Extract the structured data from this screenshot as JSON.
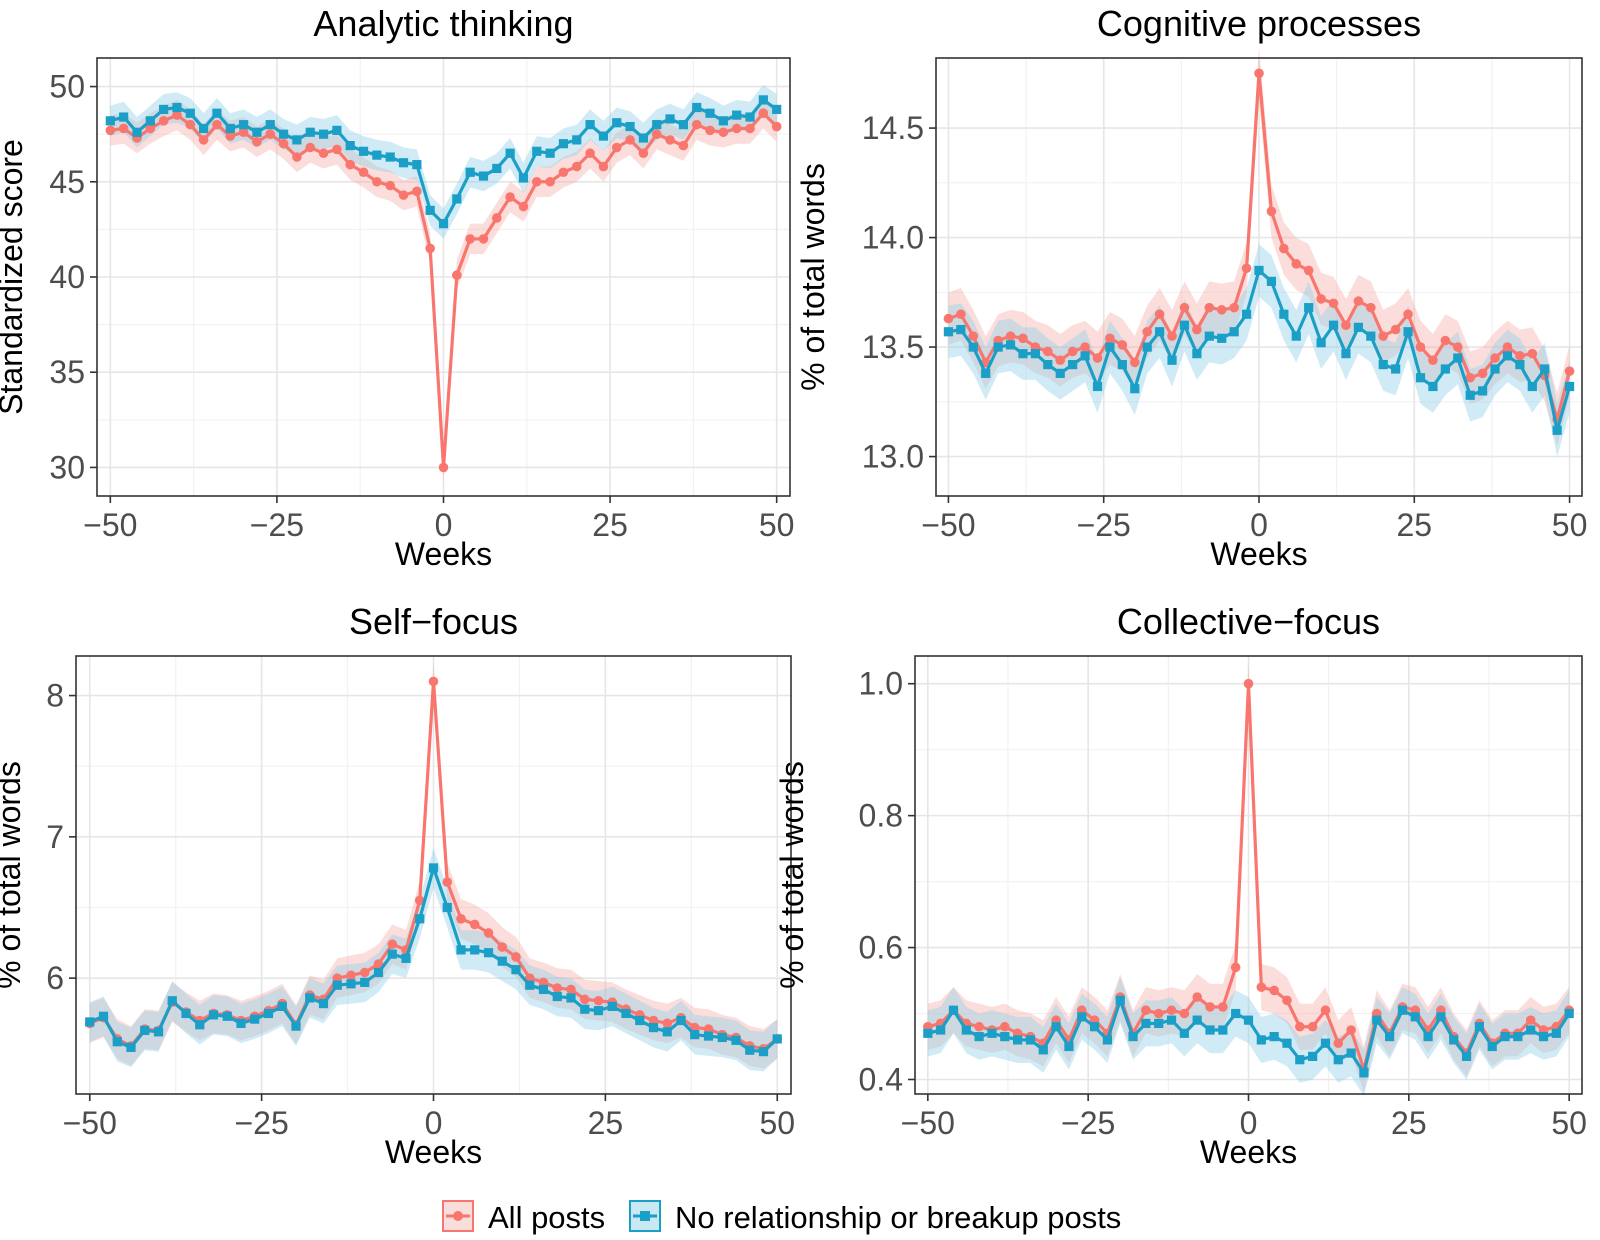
{
  "legend": {
    "position": "bottom",
    "items": [
      {
        "label": "All posts",
        "color": "#F8766D",
        "marker": "circle"
      },
      {
        "label": "No relationship or breakup posts",
        "color": "#1B9FC7",
        "marker": "square"
      }
    ]
  },
  "chart_data": [
    {
      "type": "line",
      "title": "Analytic thinking",
      "xlabel": "Weeks",
      "ylabel": "Standardized score",
      "xlim": [
        -52,
        52
      ],
      "ylim": [
        28.5,
        51.5
      ],
      "xticks": [
        -50,
        -25,
        0,
        25,
        50
      ],
      "xtick_labels": [
        "−50",
        "−25",
        "0",
        "25",
        "50"
      ],
      "yticks": [
        30,
        35,
        40,
        45,
        50
      ],
      "ytick_labels": [
        "30",
        "35",
        "40",
        "45",
        "50"
      ],
      "grid": true,
      "band": 0.8,
      "x": [
        -50,
        -48,
        -46,
        -44,
        -42,
        -40,
        -38,
        -36,
        -34,
        -32,
        -30,
        -28,
        -26,
        -24,
        -22,
        -20,
        -18,
        -16,
        -14,
        -12,
        -10,
        -8,
        -6,
        -4,
        -2,
        0,
        2,
        4,
        6,
        8,
        10,
        12,
        14,
        16,
        18,
        20,
        22,
        24,
        26,
        28,
        30,
        32,
        34,
        36,
        38,
        40,
        42,
        44,
        46,
        48,
        50
      ],
      "series": [
        {
          "name": "All posts",
          "color": "#F8766D",
          "marker": "circle",
          "values": [
            47.7,
            47.8,
            47.3,
            47.8,
            48.2,
            48.5,
            48.0,
            47.2,
            48.0,
            47.4,
            47.6,
            47.1,
            47.5,
            47.0,
            46.3,
            46.8,
            46.5,
            46.7,
            45.9,
            45.5,
            45.0,
            44.8,
            44.3,
            44.5,
            41.5,
            30.0,
            40.1,
            42.0,
            42.0,
            43.1,
            44.2,
            43.7,
            45.0,
            45.0,
            45.5,
            45.8,
            46.5,
            45.8,
            46.8,
            47.2,
            46.5,
            47.5,
            47.2,
            46.9,
            48.0,
            47.7,
            47.6,
            47.8,
            47.8,
            48.6,
            47.9
          ]
        },
        {
          "name": "No relationship or breakup posts",
          "color": "#1B9FC7",
          "marker": "square",
          "values": [
            48.2,
            48.4,
            47.6,
            48.2,
            48.8,
            48.9,
            48.6,
            47.8,
            48.6,
            47.8,
            48.0,
            47.6,
            48.0,
            47.5,
            47.2,
            47.6,
            47.5,
            47.7,
            46.9,
            46.6,
            46.4,
            46.3,
            46.0,
            45.9,
            43.5,
            42.8,
            44.1,
            45.5,
            45.3,
            45.7,
            46.5,
            45.2,
            46.6,
            46.5,
            47.0,
            47.2,
            48.0,
            47.4,
            48.1,
            47.9,
            47.3,
            48.0,
            48.3,
            48.0,
            48.9,
            48.6,
            48.2,
            48.5,
            48.4,
            49.3,
            48.8
          ]
        }
      ]
    },
    {
      "type": "line",
      "title": "Cognitive processes",
      "xlabel": "Weeks",
      "ylabel": "% of total words",
      "xlim": [
        -52,
        52
      ],
      "ylim": [
        12.82,
        14.82
      ],
      "xticks": [
        -50,
        -25,
        0,
        25,
        50
      ],
      "xtick_labels": [
        "−50",
        "−25",
        "0",
        "25",
        "50"
      ],
      "yticks": [
        13.0,
        13.5,
        14.0,
        14.5
      ],
      "ytick_labels": [
        "13.0",
        "13.5",
        "14.0",
        "14.5"
      ],
      "grid": true,
      "band": 0.12,
      "x": [
        -50,
        -48,
        -46,
        -44,
        -42,
        -40,
        -38,
        -36,
        -34,
        -32,
        -30,
        -28,
        -26,
        -24,
        -22,
        -20,
        -18,
        -16,
        -14,
        -12,
        -10,
        -8,
        -6,
        -4,
        -2,
        0,
        2,
        4,
        6,
        8,
        10,
        12,
        14,
        16,
        18,
        20,
        22,
        24,
        26,
        28,
        30,
        32,
        34,
        36,
        38,
        40,
        42,
        44,
        46,
        48,
        50
      ],
      "series": [
        {
          "name": "All posts",
          "color": "#F8766D",
          "marker": "circle",
          "values": [
            13.63,
            13.65,
            13.55,
            13.43,
            13.53,
            13.55,
            13.54,
            13.5,
            13.48,
            13.44,
            13.48,
            13.5,
            13.45,
            13.54,
            13.51,
            13.43,
            13.57,
            13.65,
            13.55,
            13.68,
            13.58,
            13.68,
            13.67,
            13.68,
            13.86,
            14.75,
            14.12,
            13.95,
            13.88,
            13.85,
            13.72,
            13.7,
            13.6,
            13.71,
            13.68,
            13.55,
            13.58,
            13.65,
            13.5,
            13.44,
            13.53,
            13.5,
            13.36,
            13.38,
            13.45,
            13.5,
            13.46,
            13.47,
            13.37,
            13.17,
            13.39
          ]
        },
        {
          "name": "No relationship or breakup posts",
          "color": "#1B9FC7",
          "marker": "square",
          "values": [
            13.57,
            13.58,
            13.5,
            13.38,
            13.5,
            13.51,
            13.47,
            13.47,
            13.42,
            13.38,
            13.42,
            13.46,
            13.32,
            13.5,
            13.42,
            13.31,
            13.5,
            13.57,
            13.44,
            13.6,
            13.47,
            13.55,
            13.54,
            13.57,
            13.65,
            13.85,
            13.8,
            13.65,
            13.55,
            13.68,
            13.52,
            13.6,
            13.47,
            13.59,
            13.55,
            13.42,
            13.4,
            13.57,
            13.36,
            13.32,
            13.4,
            13.45,
            13.28,
            13.3,
            13.4,
            13.46,
            13.42,
            13.32,
            13.4,
            13.12,
            13.32
          ]
        }
      ]
    },
    {
      "type": "line",
      "title": "Self−focus",
      "xlabel": "Weeks",
      "ylabel": "% of total words",
      "xlim": [
        -52,
        52
      ],
      "ylim": [
        5.18,
        8.28
      ],
      "xticks": [
        -50,
        -25,
        0,
        25,
        50
      ],
      "xtick_labels": [
        "−50",
        "−25",
        "0",
        "25",
        "50"
      ],
      "yticks": [
        6,
        7,
        8
      ],
      "ytick_labels": [
        "6",
        "7",
        "8"
      ],
      "grid": true,
      "band": 0.14,
      "x": [
        -50,
        -48,
        -46,
        -44,
        -42,
        -40,
        -38,
        -36,
        -34,
        -32,
        -30,
        -28,
        -26,
        -24,
        -22,
        -20,
        -18,
        -16,
        -14,
        -12,
        -10,
        -8,
        -6,
        -4,
        -2,
        0,
        2,
        4,
        6,
        8,
        10,
        12,
        14,
        16,
        18,
        20,
        22,
        24,
        26,
        28,
        30,
        32,
        34,
        36,
        38,
        40,
        42,
        44,
        46,
        48,
        50
      ],
      "series": [
        {
          "name": "All posts",
          "color": "#F8766D",
          "marker": "circle",
          "values": [
            5.68,
            5.72,
            5.57,
            5.52,
            5.64,
            5.63,
            5.83,
            5.76,
            5.7,
            5.75,
            5.74,
            5.7,
            5.73,
            5.77,
            5.82,
            5.67,
            5.88,
            5.85,
            6.0,
            6.02,
            6.04,
            6.1,
            6.24,
            6.2,
            6.55,
            8.1,
            6.68,
            6.42,
            6.38,
            6.32,
            6.22,
            6.15,
            6.0,
            5.97,
            5.93,
            5.92,
            5.85,
            5.84,
            5.83,
            5.78,
            5.74,
            5.7,
            5.68,
            5.72,
            5.65,
            5.64,
            5.6,
            5.58,
            5.52,
            5.5,
            5.57
          ]
        },
        {
          "name": "No relationship or breakup posts",
          "color": "#1B9FC7",
          "marker": "square",
          "values": [
            5.69,
            5.73,
            5.55,
            5.51,
            5.63,
            5.62,
            5.84,
            5.75,
            5.67,
            5.74,
            5.73,
            5.68,
            5.71,
            5.75,
            5.8,
            5.66,
            5.86,
            5.82,
            5.95,
            5.96,
            5.97,
            6.04,
            6.17,
            6.14,
            6.42,
            6.78,
            6.5,
            6.2,
            6.2,
            6.18,
            6.12,
            6.06,
            5.95,
            5.92,
            5.87,
            5.86,
            5.78,
            5.77,
            5.8,
            5.75,
            5.7,
            5.65,
            5.62,
            5.7,
            5.6,
            5.59,
            5.58,
            5.56,
            5.49,
            5.48,
            5.57
          ]
        }
      ]
    },
    {
      "type": "line",
      "title": "Collective−focus",
      "xlabel": "Weeks",
      "ylabel": "% of total words",
      "xlim": [
        -52,
        52
      ],
      "ylim": [
        0.378,
        1.042
      ],
      "xticks": [
        -50,
        -25,
        0,
        25,
        50
      ],
      "xtick_labels": [
        "−50",
        "−25",
        "0",
        "25",
        "50"
      ],
      "yticks": [
        0.4,
        0.6,
        0.8,
        1.0
      ],
      "ytick_labels": [
        "0.4",
        "0.6",
        "0.8",
        "1.0"
      ],
      "grid": true,
      "band": 0.035,
      "x": [
        -50,
        -48,
        -46,
        -44,
        -42,
        -40,
        -38,
        -36,
        -34,
        -32,
        -30,
        -28,
        -26,
        -24,
        -22,
        -20,
        -18,
        -16,
        -14,
        -12,
        -10,
        -8,
        -6,
        -4,
        -2,
        0,
        2,
        4,
        6,
        8,
        10,
        12,
        14,
        16,
        18,
        20,
        22,
        24,
        26,
        28,
        30,
        32,
        34,
        36,
        38,
        40,
        42,
        44,
        46,
        48,
        50
      ],
      "series": [
        {
          "name": "All posts",
          "color": "#F8766D",
          "marker": "circle",
          "values": [
            0.48,
            0.485,
            0.505,
            0.485,
            0.48,
            0.475,
            0.48,
            0.47,
            0.465,
            0.455,
            0.49,
            0.46,
            0.505,
            0.49,
            0.47,
            0.525,
            0.47,
            0.505,
            0.5,
            0.505,
            0.5,
            0.525,
            0.51,
            0.51,
            0.57,
            1.0,
            0.54,
            0.535,
            0.52,
            0.48,
            0.48,
            0.505,
            0.455,
            0.475,
            0.415,
            0.5,
            0.47,
            0.51,
            0.505,
            0.475,
            0.505,
            0.465,
            0.44,
            0.485,
            0.455,
            0.47,
            0.47,
            0.49,
            0.475,
            0.48,
            0.505
          ]
        },
        {
          "name": "No relationship or breakup posts",
          "color": "#1B9FC7",
          "marker": "square",
          "values": [
            0.47,
            0.475,
            0.505,
            0.475,
            0.465,
            0.47,
            0.465,
            0.46,
            0.46,
            0.445,
            0.48,
            0.45,
            0.495,
            0.48,
            0.46,
            0.52,
            0.465,
            0.485,
            0.485,
            0.49,
            0.47,
            0.49,
            0.475,
            0.475,
            0.5,
            0.49,
            0.46,
            0.465,
            0.455,
            0.43,
            0.435,
            0.455,
            0.43,
            0.44,
            0.41,
            0.49,
            0.465,
            0.505,
            0.495,
            0.465,
            0.495,
            0.46,
            0.435,
            0.48,
            0.45,
            0.465,
            0.465,
            0.475,
            0.465,
            0.47,
            0.5
          ]
        }
      ]
    }
  ]
}
